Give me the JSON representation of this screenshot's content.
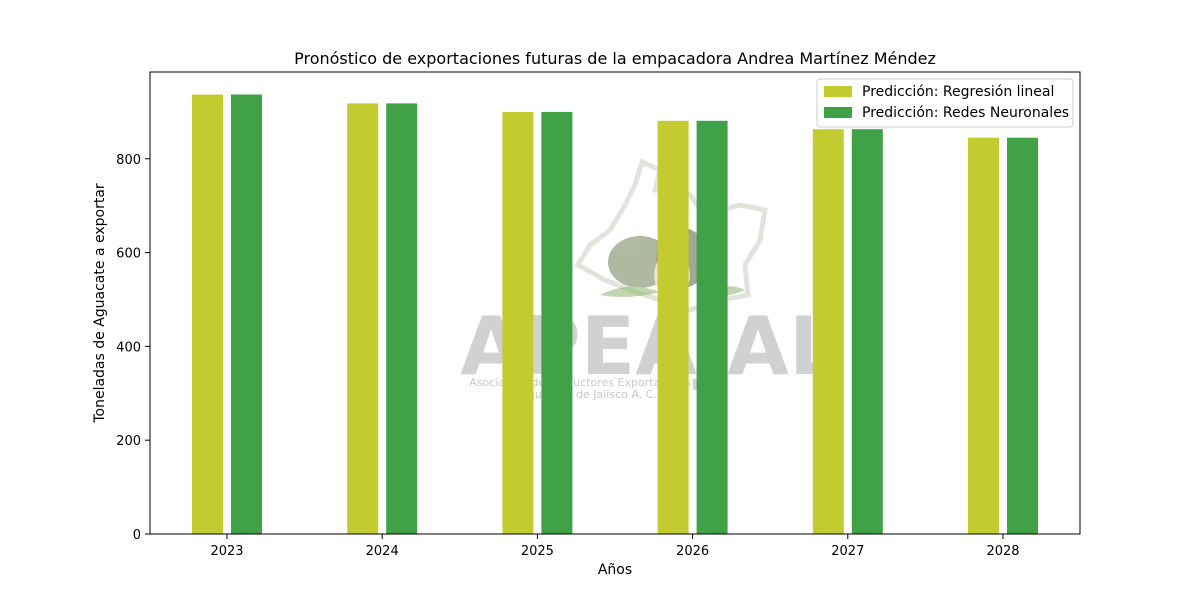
{
  "chart_data": {
    "type": "bar",
    "title": "Pronóstico de exportaciones futuras de la empacadora Andrea Martínez Méndez",
    "xlabel": "Años",
    "ylabel": "Toneladas de Aguacate a exportar",
    "categories": [
      "2023",
      "2024",
      "2025",
      "2026",
      "2027",
      "2028"
    ],
    "series": [
      {
        "name": "Predicción: Regresión lineal",
        "color": "#c2cb30",
        "values": [
          937,
          918,
          900,
          881,
          863,
          845
        ]
      },
      {
        "name": "Predicción: Redes Neuronales",
        "color": "#41a147",
        "values": [
          937,
          918,
          900,
          881,
          863,
          845
        ]
      }
    ],
    "ylim": [
      0,
      985
    ],
    "yticks": [
      0,
      200,
      400,
      600,
      800
    ],
    "grid": false,
    "legend_position": "top-right"
  },
  "watermark": {
    "logo_text": "APEAJAL",
    "line1": "Asociación de Productores Exportadores",
    "line2": "de Aguacate de Jalisco A. C.",
    "logo_icon": "avocado-icon"
  }
}
